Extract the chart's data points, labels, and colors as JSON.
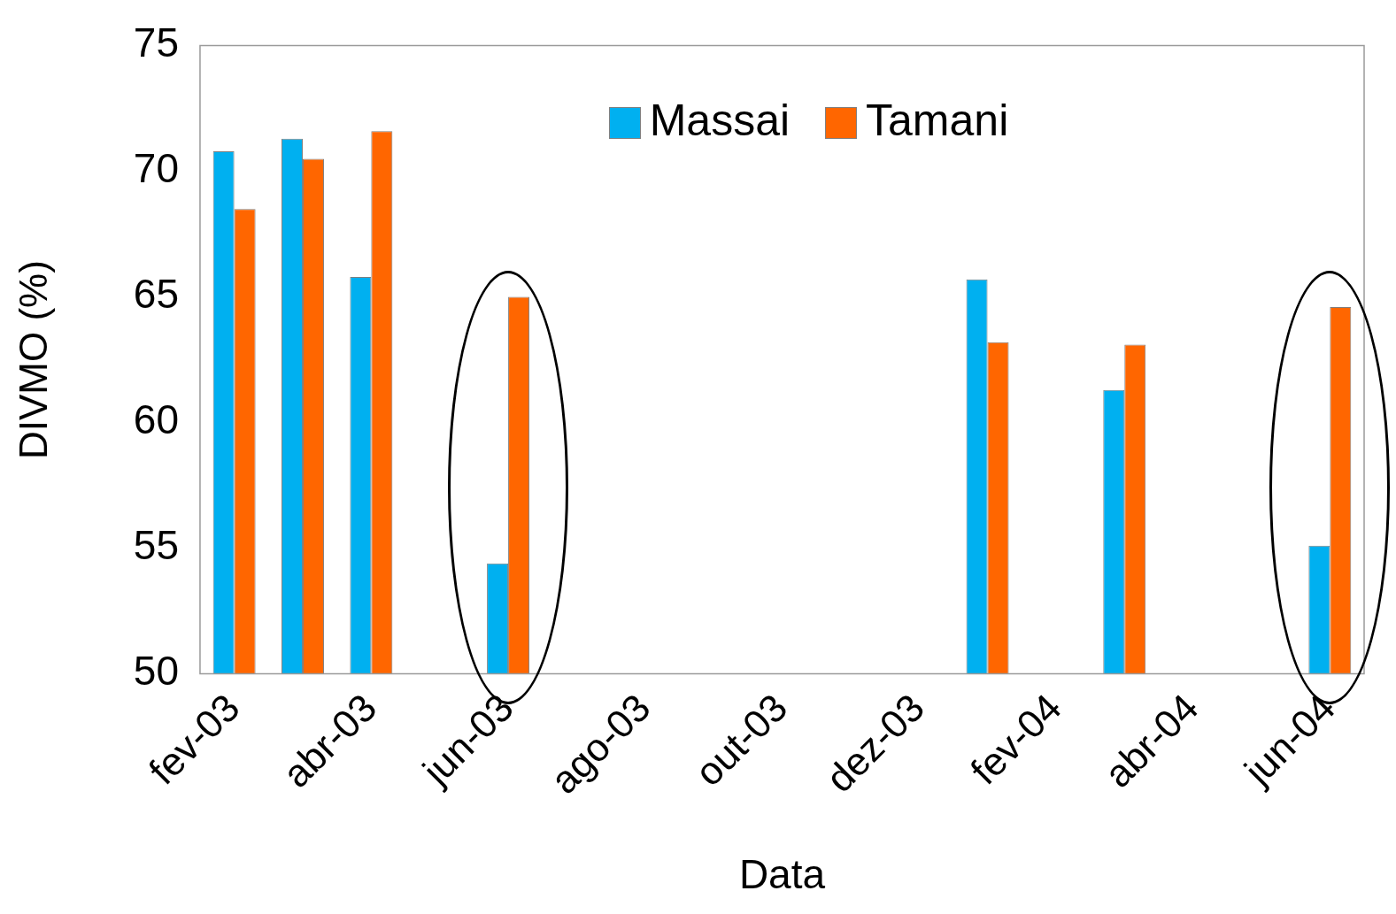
{
  "chart_data": {
    "type": "bar",
    "xlabel": "Data",
    "ylabel": "DIVMO (%)",
    "categories": [
      "fev-03",
      null,
      "abr-03",
      null,
      "jun-03",
      null,
      "ago-03",
      null,
      "out-03",
      null,
      "dez-03",
      null,
      "fev-04",
      null,
      "abr-04",
      null,
      "jun-04"
    ],
    "series": [
      {
        "name": "Massai",
        "color": "#00b0f0",
        "values": [
          70.8,
          71.3,
          65.8,
          null,
          54.4,
          null,
          null,
          null,
          null,
          null,
          null,
          65.7,
          null,
          61.3,
          null,
          null,
          55.1
        ]
      },
      {
        "name": "Tamani",
        "color": "#ff6600",
        "values": [
          68.5,
          70.5,
          71.6,
          null,
          65.0,
          null,
          null,
          null,
          null,
          null,
          null,
          63.2,
          null,
          63.1,
          null,
          null,
          64.6
        ]
      }
    ],
    "ylim": [
      50,
      75
    ],
    "yticks": [
      50,
      55,
      60,
      65,
      70,
      75
    ],
    "grid": false,
    "legend": "top"
  }
}
